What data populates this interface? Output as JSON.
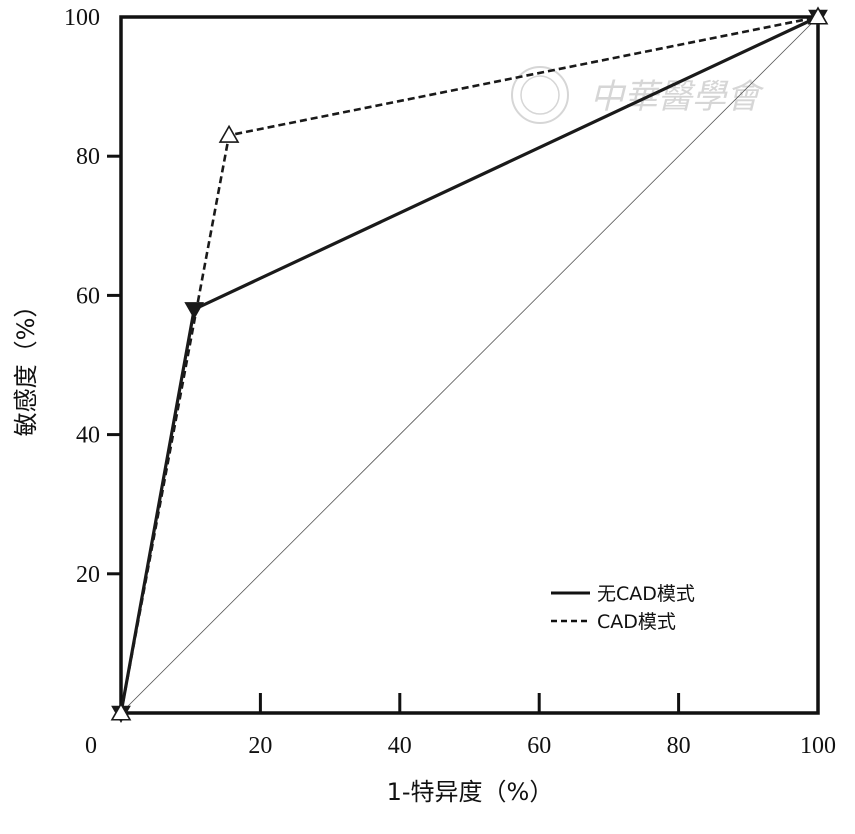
{
  "chart_data": {
    "type": "line",
    "xlabel": "1-特异度（%）",
    "ylabel": "敏感度（%）",
    "xlim": [
      0,
      100
    ],
    "ylim": [
      0,
      100
    ],
    "xticks": [
      "0",
      "20",
      "40",
      "60",
      "80",
      "100"
    ],
    "yticks": [
      "20",
      "40",
      "60",
      "80",
      "100"
    ],
    "series": [
      {
        "name": "无CAD模式",
        "line_style": "solid",
        "marker": "filled-down-triangle",
        "color": "#1a1a1a",
        "x": [
          0,
          10.5,
          100
        ],
        "y": [
          0,
          58,
          100
        ]
      },
      {
        "name": "CAD模式",
        "line_style": "dashed",
        "marker": "open-up-triangle",
        "color": "#1a1a1a",
        "x": [
          0,
          15.5,
          100
        ],
        "y": [
          0,
          83,
          100
        ]
      }
    ],
    "reference_line": {
      "x": [
        0,
        100
      ],
      "y": [
        0,
        100
      ]
    },
    "grid": false,
    "legend_position": "bottom-right"
  },
  "watermark": {
    "text": "中華醫學會"
  }
}
